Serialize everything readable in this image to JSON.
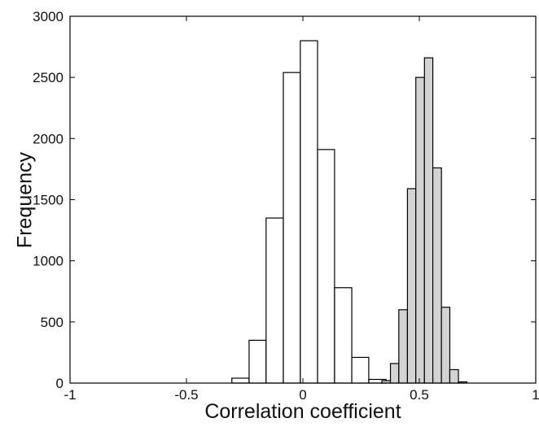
{
  "chart_data": {
    "type": "histogram",
    "xlabel": "Correlation coefficient",
    "ylabel": "Frequency",
    "xlim": [
      -1,
      1
    ],
    "ylim": [
      0,
      3000
    ],
    "xticks": [
      -1,
      -0.5,
      0,
      0.5,
      1
    ],
    "yticks": [
      0,
      500,
      1000,
      1500,
      2000,
      2500,
      3000
    ],
    "series": [
      {
        "color": "#ffffff",
        "bins": [
          -0.305,
          -0.231,
          -0.158,
          -0.084,
          -0.011,
          0.063,
          0.136,
          0.21,
          0.283,
          0.357
        ],
        "values": [
          40,
          350,
          1350,
          2540,
          2800,
          1910,
          780,
          210,
          30
        ]
      },
      {
        "color": "#d3d3d3",
        "bins": [
          0.339,
          0.376,
          0.412,
          0.449,
          0.485,
          0.522,
          0.558,
          0.595,
          0.631,
          0.668,
          0.704
        ],
        "values": [
          20,
          160,
          600,
          1590,
          2500,
          2660,
          1760,
          620,
          110,
          10
        ]
      }
    ]
  }
}
